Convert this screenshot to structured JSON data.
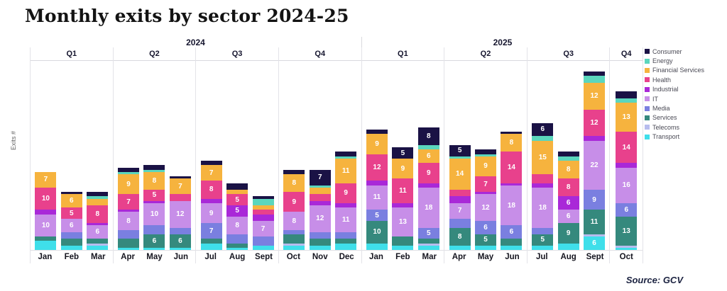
{
  "title": "Monthly exits by sector 2024-25",
  "source": "Source: GCV",
  "chart_data": {
    "type": "bar",
    "subtype": "stacked-monthly",
    "title": "Monthly exits by sector 2024-25",
    "ylabel": "Exits #",
    "xlabel": "",
    "ylim": [
      0,
      85
    ],
    "grid": "quarter-separators",
    "legend_position": "right",
    "label_threshold": 5,
    "years": [
      {
        "label": "2024",
        "quarters": [
          {
            "label": "Q1",
            "months": [
              "Jan",
              "Feb",
              "Mar"
            ]
          },
          {
            "label": "Q2",
            "months": [
              "Apr",
              "May",
              "Jun"
            ]
          },
          {
            "label": "Q3",
            "months": [
              "Jul",
              "Aug",
              "Sept"
            ]
          },
          {
            "label": "Q4",
            "months": [
              "Oct",
              "Nov",
              "Dec"
            ]
          }
        ]
      },
      {
        "label": "2025",
        "quarters": [
          {
            "label": "Q1",
            "months": [
              "Jan",
              "Feb",
              "Mar"
            ]
          },
          {
            "label": "Q2",
            "months": [
              "Apr",
              "May",
              "Jun"
            ]
          },
          {
            "label": "Q3",
            "months": [
              "Jul",
              "Aug",
              "Sept"
            ]
          },
          {
            "label": "Q4",
            "months": [
              "Oct"
            ]
          }
        ]
      }
    ],
    "sectors": [
      {
        "name": "Consumer",
        "color": "#1a1245"
      },
      {
        "name": "Energy",
        "color": "#5bd6bd"
      },
      {
        "name": "Financial Services",
        "color": "#f6b33e"
      },
      {
        "name": "Health",
        "color": "#e8418c"
      },
      {
        "name": "Industrial",
        "color": "#a928d8"
      },
      {
        "name": "IT",
        "color": "#c78ee8"
      },
      {
        "name": "Media",
        "color": "#7a7fe0"
      },
      {
        "name": "Services",
        "color": "#35897d"
      },
      {
        "name": "Telecoms",
        "color": "#b7bcee"
      },
      {
        "name": "Transport",
        "color": "#3fdfea"
      }
    ],
    "stack_order": [
      "Transport",
      "Telecoms",
      "Services",
      "Media",
      "IT",
      "Industrial",
      "Health",
      "Financial Services",
      "Energy",
      "Consumer"
    ],
    "series": {
      "Transport": [
        4,
        2,
        2,
        1,
        1,
        1,
        3,
        1,
        2,
        2,
        2,
        3,
        3,
        2,
        2,
        2,
        2,
        2,
        2,
        3,
        6,
        1
      ],
      "Telecoms": [
        0,
        0,
        1,
        0,
        0,
        0,
        0,
        0,
        0,
        1,
        0,
        0,
        0,
        0,
        1,
        0,
        0,
        0,
        0,
        0,
        1,
        1
      ],
      "Services": [
        2,
        3,
        2,
        4,
        6,
        6,
        2,
        2,
        0,
        4,
        3,
        2,
        10,
        4,
        2,
        8,
        5,
        3,
        5,
        9,
        11,
        13
      ],
      "Media": [
        0,
        3,
        0,
        4,
        4,
        3,
        7,
        4,
        4,
        2,
        3,
        3,
        5,
        0,
        5,
        4,
        6,
        6,
        3,
        0,
        9,
        6
      ],
      "IT": [
        10,
        6,
        6,
        8,
        10,
        12,
        9,
        8,
        7,
        8,
        12,
        11,
        11,
        13,
        18,
        7,
        12,
        18,
        18,
        6,
        22,
        16
      ],
      "Industrial": [
        2,
        0,
        1,
        1,
        1,
        0,
        2,
        5,
        3,
        0,
        2,
        2,
        2,
        2,
        2,
        3,
        1,
        1,
        2,
        6,
        2,
        2
      ],
      "Health": [
        10,
        5,
        8,
        7,
        5,
        3,
        8,
        5,
        2,
        9,
        3,
        9,
        12,
        11,
        9,
        3,
        7,
        14,
        4,
        8,
        12,
        14
      ],
      "Financial Services": [
        7,
        6,
        3,
        9,
        8,
        7,
        7,
        2,
        2,
        8,
        3,
        11,
        9,
        9,
        6,
        14,
        9,
        8,
        15,
        8,
        12,
        13
      ],
      "Energy": [
        0,
        0,
        1,
        1,
        1,
        0,
        0,
        0,
        3,
        0,
        1,
        1,
        0,
        0,
        2,
        1,
        1,
        0,
        2,
        2,
        3,
        2
      ],
      "Consumer": [
        0,
        1,
        2,
        2,
        2,
        1,
        2,
        3,
        1,
        2,
        7,
        2,
        2,
        5,
        8,
        5,
        2,
        1,
        6,
        2,
        2,
        3
      ]
    }
  }
}
